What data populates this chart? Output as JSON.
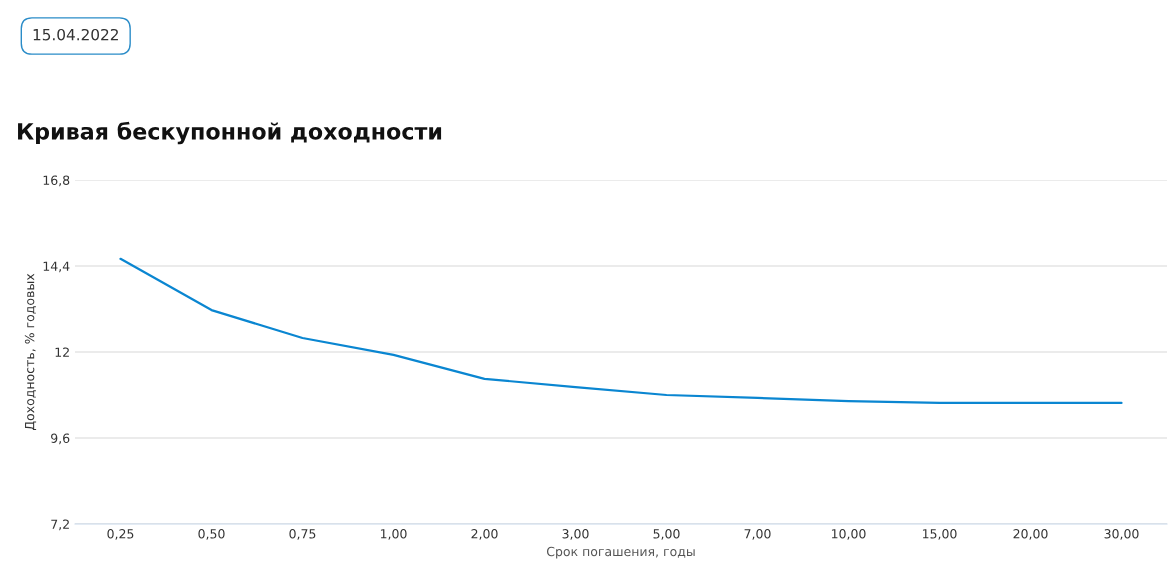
{
  "chart_data": {
    "type": "line",
    "title": "Кривая бескупонной доходности",
    "annotations": [
      "15.04.2022"
    ],
    "xlabel": "Срок погашения, годы",
    "ylabel": "Доходность, % годовых",
    "categories": [
      "0,25",
      "0,50",
      "0,75",
      "1,00",
      "2,00",
      "3,00",
      "5,00",
      "7,00",
      "10,00",
      "15,00",
      "20,00",
      "30,00"
    ],
    "series": [
      {
        "color": "#0a86d1",
        "values": [
          14.6,
          13.17,
          12.39,
          11.92,
          11.25,
          11.02,
          10.8,
          10.72,
          10.63,
          10.58,
          10.58,
          10.58
        ]
      }
    ],
    "ylim": [
      7.2,
      16.8
    ],
    "yticks": [
      {
        "value": 7.2,
        "label": "7,2"
      },
      {
        "value": 9.6,
        "label": "9,6"
      },
      {
        "value": 12,
        "label": "12"
      },
      {
        "value": 14.4,
        "label": "14,4"
      },
      {
        "value": 16.8,
        "label": "16,8"
      }
    ],
    "grid": "y",
    "legend": false,
    "marker": "none",
    "line_style": "solid"
  }
}
